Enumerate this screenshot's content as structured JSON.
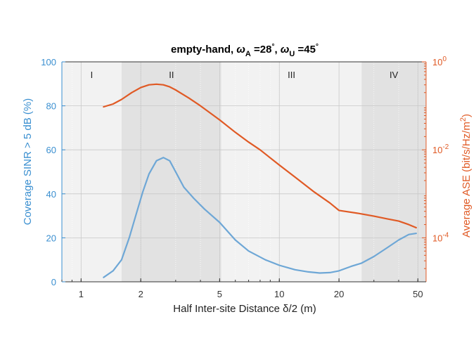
{
  "chart_data": {
    "type": "line",
    "title": {
      "prefix": "empty-hand, ",
      "omega": "ω",
      "sub_a": "A",
      "a_value": " =28",
      "sep": ", ",
      "sub_u": "U",
      "u_value": " =45",
      "degree": "°"
    },
    "xlabel": "Half Inter-site Distance δ/2 (m)",
    "ylabel_left": "Coverage SINR > 5 dB (%)",
    "ylabel_right": {
      "main": "Average ASE (bit/s/Hz/m",
      "sup": "2",
      "close": ")"
    },
    "x_scale": "log",
    "xlim": [
      0.8,
      55
    ],
    "xticks": [
      1,
      2,
      5,
      10,
      20,
      50
    ],
    "xtick_labels": [
      "1",
      "2",
      "5",
      "10",
      "20",
      "50"
    ],
    "ylim_left": [
      0,
      100
    ],
    "yticks_left": [
      0,
      20,
      40,
      60,
      80,
      100
    ],
    "ytick_labels_left": [
      "0",
      "20",
      "40",
      "60",
      "80",
      "100"
    ],
    "y_scale_right": "log",
    "ylim_right": [
      1e-05,
      1
    ],
    "yticks_right": [
      0.0001,
      0.01,
      1
    ],
    "ytick_labels_right": [
      {
        "base": "10",
        "exp": "-4"
      },
      {
        "base": "10",
        "exp": "-2"
      },
      {
        "base": "10",
        "exp": "0"
      }
    ],
    "grid": true,
    "regions": [
      {
        "label": "I",
        "x0": 0.8,
        "x1": 1.6,
        "shade": "#f2f2f2"
      },
      {
        "label": "II",
        "x0": 1.6,
        "x1": 5.1,
        "shade": "#e2e2e2"
      },
      {
        "label": "III",
        "x0": 5.1,
        "x1": 26,
        "shade": "#f2f2f2"
      },
      {
        "label": "IV",
        "x0": 26,
        "x1": 55,
        "shade": "#e2e2e2"
      }
    ],
    "series": [
      {
        "axis": "left",
        "color": "#6ea7d6",
        "x": [
          1.3,
          1.45,
          1.6,
          1.75,
          1.9,
          2.05,
          2.2,
          2.4,
          2.6,
          2.8,
          3.0,
          3.3,
          3.7,
          4.2,
          5.0,
          6.0,
          7.0,
          8.5,
          10,
          12,
          14,
          16,
          18,
          20,
          23,
          26,
          30,
          35,
          40,
          45,
          49
        ],
        "values": [
          2,
          5,
          10,
          20,
          31,
          41,
          49,
          55,
          56.5,
          55,
          50,
          43,
          38,
          33,
          27,
          19,
          14,
          10,
          7.5,
          5.5,
          4.5,
          4,
          4.2,
          5,
          7,
          8.5,
          11.5,
          15.5,
          19,
          21.5,
          22
        ]
      },
      {
        "axis": "right",
        "color": "#e05a25",
        "x": [
          1.3,
          1.45,
          1.6,
          1.8,
          2.0,
          2.2,
          2.4,
          2.6,
          2.8,
          3.0,
          3.5,
          4.0,
          5.0,
          6.0,
          7.0,
          8.0,
          10,
          12,
          15,
          18,
          20,
          25,
          30,
          35,
          40,
          45,
          49
        ],
        "values": [
          0.095,
          0.11,
          0.14,
          0.2,
          0.26,
          0.3,
          0.31,
          0.3,
          0.27,
          0.23,
          0.15,
          0.1,
          0.048,
          0.025,
          0.015,
          0.01,
          0.0045,
          0.0024,
          0.0011,
          0.00062,
          0.00042,
          0.00036,
          0.00031,
          0.00027,
          0.00024,
          0.0002,
          0.00017
        ]
      }
    ],
    "colors": {
      "left_axis": "#3a8fd0",
      "right_axis": "#e05a25"
    }
  }
}
